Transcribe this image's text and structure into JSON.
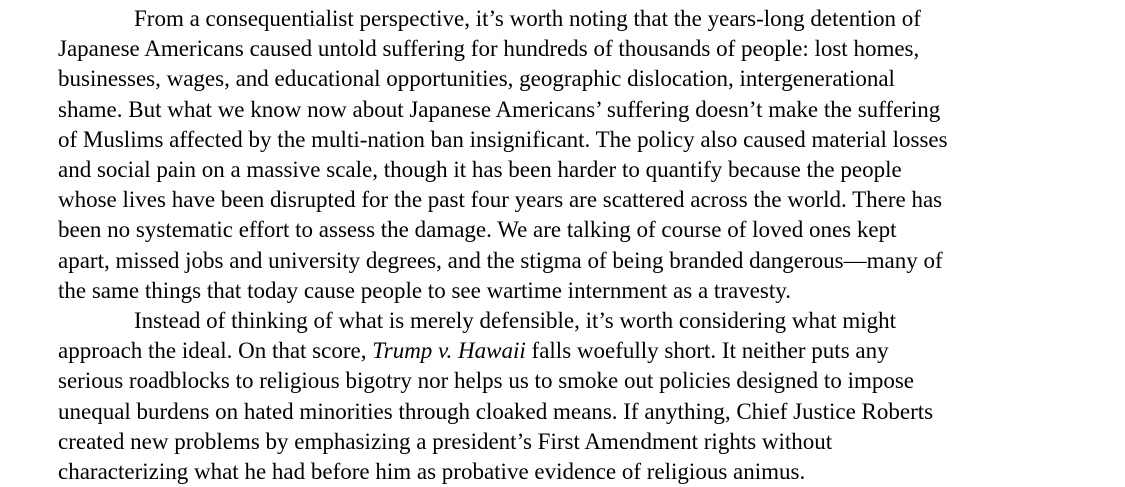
{
  "paragraphs": [
    {
      "lines": [
        "From a consequentialist perspective, it’s worth noting that the years-long detention of",
        "Japanese Americans caused untold suffering for hundreds of thousands of people: lost homes,",
        "businesses, wages, and educational opportunities, geographic dislocation, intergenerational",
        "shame. But what we know now about Japanese Americans’ suffering doesn’t make the suffering",
        "of Muslims affected by the multi-nation ban insignificant. The policy also caused material losses",
        "and social pain on a massive scale, though it has been harder to quantify because the people",
        "whose lives have been disrupted for the past four years are scattered across the world. There has",
        "been no systematic effort to assess the damage. We are talking of course of loved ones kept",
        "apart, missed jobs and university degrees, and the stigma of being branded dangerous—many of",
        "the same things that today cause people to see wartime internment as a travesty."
      ]
    },
    {
      "lines": [
        "Instead of thinking of what is merely defensible, it’s worth considering what might",
        "approach the ideal. On that score, ",
        "serious roadblocks to religious bigotry nor helps us to smoke out policies designed to impose",
        "unequal burdens on hated minorities through cloaked means. If anything, Chief Justice Roberts",
        "created new problems by emphasizing a president’s First Amendment rights without",
        "characterizing what he had before him as probative evidence of religious animus."
      ],
      "case_name": "Trump v. Hawaii",
      "line2_tail": " falls woefully short. It neither puts any"
    }
  ]
}
